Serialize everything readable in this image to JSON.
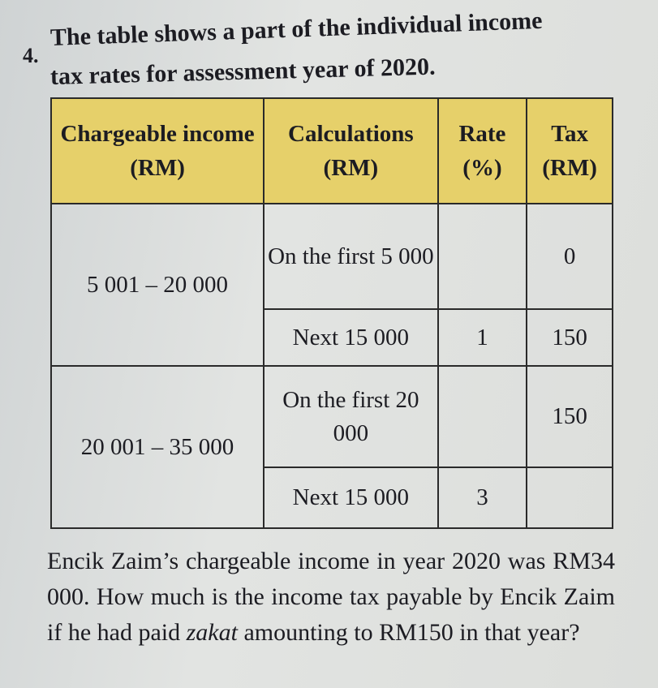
{
  "question_number": "4.",
  "question_line1": "The table shows a part of the individual income",
  "question_line2": "tax rates for assessment year of 2020.",
  "table": {
    "headers": [
      "Chargeable income (RM)",
      "Calculations (RM)",
      "Rate (%)",
      "Tax (RM)"
    ],
    "rows": [
      {
        "income": "5 001 – 20 000",
        "calc1": "On the first 5 000",
        "rate1": "",
        "tax1": "0",
        "calc2": "Next 15 000",
        "rate2": "1",
        "tax2": "150"
      },
      {
        "income": "20 001 – 35 000",
        "calc1": "On the first 20 000",
        "rate1": "",
        "tax1": "150",
        "calc2": "Next 15 000",
        "rate2": "3",
        "tax2": ""
      }
    ]
  },
  "paragraph": {
    "part1": "Encik Zaim’s chargeable income in year 2020 was RM34 000. How much is the income tax payable by Encik Zaim if he had paid ",
    "italic": "zakat",
    "part2": " amounting to RM150 in that year?"
  }
}
